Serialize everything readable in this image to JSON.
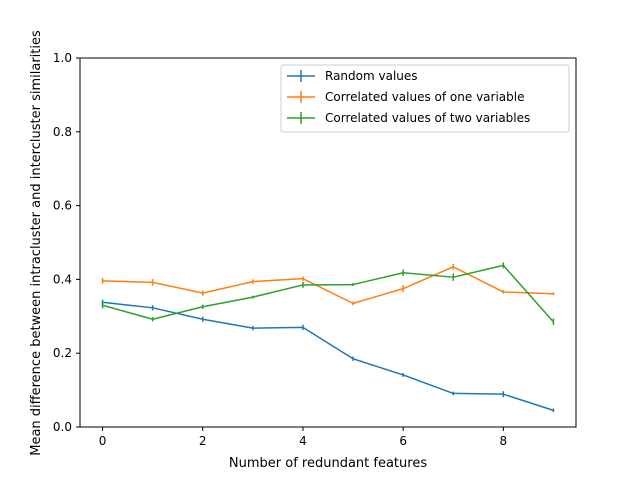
{
  "chart_data": {
    "type": "line",
    "title": "",
    "xlabel": "Number of redundant features",
    "ylabel": "Mean difference between intracluster and intercluster similarities",
    "xlim": [
      -0.45,
      9.45
    ],
    "ylim": [
      0.0,
      1.0
    ],
    "x_ticks": [
      0,
      2,
      4,
      6,
      8
    ],
    "y_ticks": [
      0.0,
      0.2,
      0.4,
      0.6,
      0.8,
      1.0
    ],
    "x_tick_labels": [
      "0",
      "2",
      "4",
      "6",
      "8"
    ],
    "y_tick_labels": [
      "0.0",
      "0.2",
      "0.4",
      "0.6",
      "0.8",
      "1.0"
    ],
    "grid": false,
    "legend_position": "top-right",
    "x": [
      0,
      1,
      2,
      3,
      4,
      5,
      6,
      7,
      8,
      9
    ],
    "series": [
      {
        "name": "Random values",
        "color": "#1f77b4",
        "values": [
          0.338,
          0.323,
          0.292,
          0.268,
          0.27,
          0.185,
          0.141,
          0.091,
          0.089,
          0.045
        ],
        "errors": [
          0.007,
          0.007,
          0.007,
          0.006,
          0.007,
          0.006,
          0.005,
          0.005,
          0.008,
          0.005
        ]
      },
      {
        "name": "Correlated values of one variable",
        "color": "#ff7f0e",
        "values": [
          0.396,
          0.392,
          0.363,
          0.394,
          0.402,
          0.335,
          0.375,
          0.434,
          0.366,
          0.361
        ],
        "errors": [
          0.008,
          0.009,
          0.007,
          0.006,
          0.006,
          0.005,
          0.009,
          0.008,
          0.005,
          0.004
        ]
      },
      {
        "name": "Correlated values of two variables",
        "color": "#2ca02c",
        "values": [
          0.33,
          0.292,
          0.326,
          0.352,
          0.385,
          0.386,
          0.418,
          0.406,
          0.438,
          0.285
        ],
        "errors": [
          0.009,
          0.006,
          0.006,
          0.004,
          0.008,
          0.004,
          0.009,
          0.01,
          0.008,
          0.009
        ]
      }
    ]
  }
}
